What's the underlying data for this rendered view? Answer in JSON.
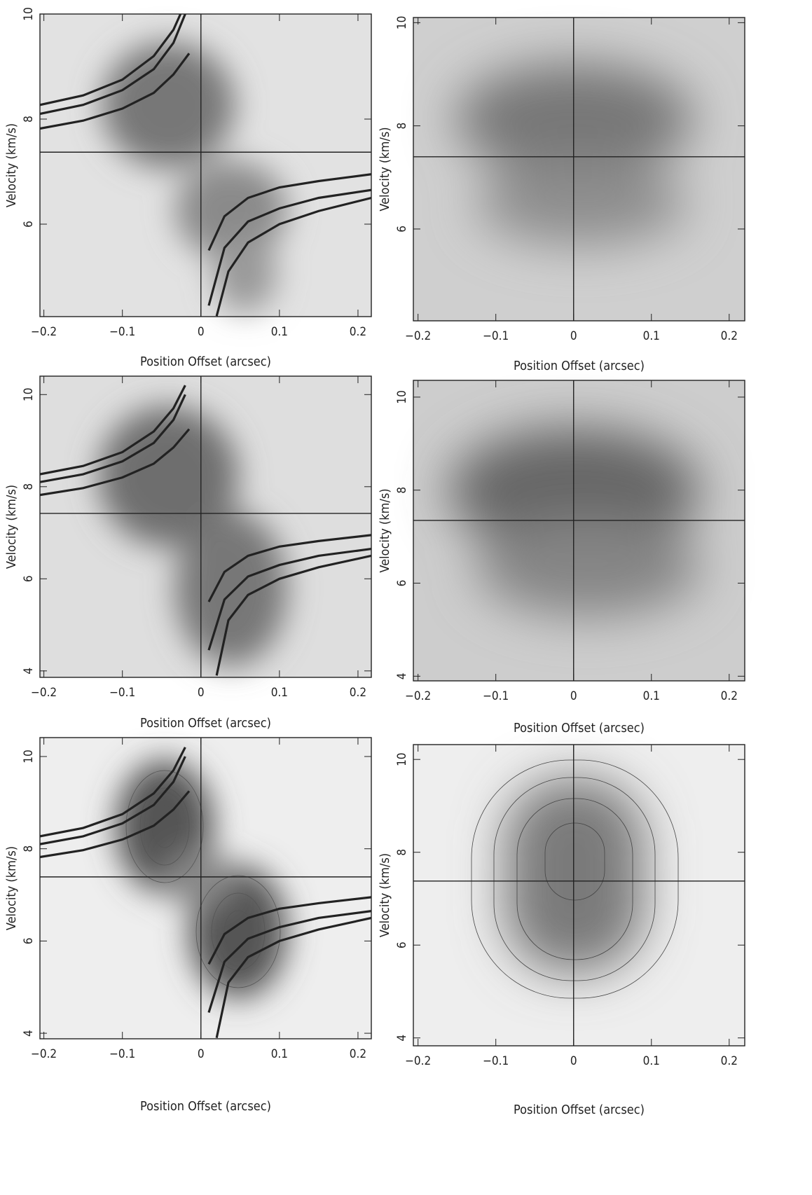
{
  "chart_data": [
    {
      "type": "line",
      "xlabel": "Position Offset (arcsec)",
      "ylabel": "Velocity (km/s)",
      "xlim": [
        -0.205,
        0.217
      ],
      "ylim": [
        4.24,
        10
      ],
      "xticks": [
        {
          "value": -0.2,
          "label": "−0.2"
        },
        {
          "value": -0.1,
          "label": "−0.1"
        },
        0,
        0.1,
        0.2
      ],
      "yticks": [
        6,
        8,
        10
      ],
      "hlines": [
        7.37
      ],
      "vlines": [
        0
      ],
      "series": [
        {
          "color": "#222222",
          "x": [
            -0.205,
            -0.15,
            -0.1,
            -0.06,
            -0.035,
            -0.02
          ],
          "values": [
            8.27,
            8.45,
            8.75,
            9.2,
            9.7,
            10.2
          ]
        },
        {
          "color": "#222222",
          "x": [
            -0.205,
            -0.15,
            -0.1,
            -0.06,
            -0.035,
            -0.02
          ],
          "values": [
            8.1,
            8.27,
            8.55,
            8.95,
            9.45,
            10.0
          ]
        },
        {
          "color": "#222222",
          "x": [
            -0.205,
            -0.15,
            -0.1,
            -0.06,
            -0.035,
            -0.015
          ],
          "values": [
            7.82,
            7.97,
            8.2,
            8.5,
            8.85,
            9.25
          ]
        },
        {
          "color": "#222222",
          "x": [
            0.01,
            0.03,
            0.06,
            0.1,
            0.15,
            0.217
          ],
          "values": [
            5.5,
            6.15,
            6.5,
            6.7,
            6.82,
            6.95
          ]
        },
        {
          "color": "#222222",
          "x": [
            0.01,
            0.03,
            0.06,
            0.1,
            0.15,
            0.217
          ],
          "values": [
            4.45,
            5.55,
            6.05,
            6.3,
            6.5,
            6.65
          ]
        },
        {
          "color": "#222222",
          "x": [
            0.02,
            0.035,
            0.06,
            0.1,
            0.15,
            0.217
          ],
          "values": [
            4.25,
            5.1,
            5.65,
            6.0,
            6.25,
            6.5
          ]
        }
      ]
    },
    {
      "type": "line",
      "xlabel": "Position Offset (arcsec)",
      "ylabel": "Velocity (km/s)",
      "xlim": [
        -0.206,
        0.22
      ],
      "ylim": [
        4.22,
        10.1
      ],
      "xticks": [
        {
          "value": -0.2,
          "label": "−0.2"
        },
        {
          "value": -0.1,
          "label": "−0.1"
        },
        0,
        0.1,
        0.2
      ],
      "yticks": [
        6,
        8,
        10
      ],
      "hlines": [
        7.4
      ],
      "vlines": [
        0
      ],
      "series": []
    },
    {
      "type": "line",
      "xlabel": "Position Offset (arcsec)",
      "ylabel": "Velocity (km/s)",
      "xlim": [
        -0.205,
        0.217
      ],
      "ylim": [
        3.86,
        10.4
      ],
      "xticks": [
        {
          "value": -0.2,
          "label": "−0.2"
        },
        {
          "value": -0.1,
          "label": "−0.1"
        },
        0,
        0.1,
        0.2
      ],
      "yticks": [
        4,
        6,
        8,
        10
      ],
      "hlines": [
        7.42
      ],
      "vlines": [
        0
      ],
      "series": [
        {
          "color": "#222222",
          "x": [
            -0.205,
            -0.15,
            -0.1,
            -0.06,
            -0.035,
            -0.02
          ],
          "values": [
            8.27,
            8.45,
            8.75,
            9.2,
            9.7,
            10.2
          ]
        },
        {
          "color": "#222222",
          "x": [
            -0.205,
            -0.15,
            -0.1,
            -0.06,
            -0.035,
            -0.02
          ],
          "values": [
            8.1,
            8.27,
            8.55,
            8.95,
            9.45,
            10.0
          ]
        },
        {
          "color": "#222222",
          "x": [
            -0.205,
            -0.15,
            -0.1,
            -0.06,
            -0.035,
            -0.015
          ],
          "values": [
            7.82,
            7.97,
            8.2,
            8.5,
            8.85,
            9.25
          ]
        },
        {
          "color": "#222222",
          "x": [
            0.01,
            0.03,
            0.06,
            0.1,
            0.15,
            0.217
          ],
          "values": [
            5.5,
            6.15,
            6.5,
            6.7,
            6.82,
            6.95
          ]
        },
        {
          "color": "#222222",
          "x": [
            0.01,
            0.03,
            0.06,
            0.1,
            0.15,
            0.217
          ],
          "values": [
            4.45,
            5.55,
            6.05,
            6.3,
            6.5,
            6.65
          ]
        },
        {
          "color": "#222222",
          "x": [
            0.02,
            0.035,
            0.06,
            0.1,
            0.15,
            0.217
          ],
          "values": [
            3.9,
            5.1,
            5.65,
            6.0,
            6.25,
            6.5
          ]
        }
      ]
    },
    {
      "type": "line",
      "xlabel": "Position Offset (arcsec)",
      "ylabel": "Velocity (km/s)",
      "xlim": [
        -0.206,
        0.22
      ],
      "ylim": [
        3.9,
        10.36
      ],
      "xticks": [
        {
          "value": -0.2,
          "label": "−0.2"
        },
        {
          "value": -0.1,
          "label": "−0.1"
        },
        0,
        0.1,
        0.2
      ],
      "yticks": [
        4,
        6,
        8,
        10
      ],
      "hlines": [
        7.35
      ],
      "vlines": [
        0
      ],
      "series": []
    },
    {
      "type": "line",
      "xlabel": "Position Offset (arcsec)",
      "ylabel": "Velocity (km/s)",
      "xlim": [
        -0.205,
        0.217
      ],
      "ylim": [
        3.88,
        10.41
      ],
      "xticks": [
        {
          "value": -0.2,
          "label": "−0.2"
        },
        {
          "value": -0.1,
          "label": "−0.1"
        },
        0,
        0.1,
        0.2
      ],
      "yticks": [
        4,
        6,
        8,
        10
      ],
      "hlines": [
        7.39
      ],
      "vlines": [
        0
      ],
      "series": [
        {
          "color": "#222222",
          "x": [
            -0.205,
            -0.15,
            -0.1,
            -0.06,
            -0.035,
            -0.02
          ],
          "values": [
            8.27,
            8.45,
            8.75,
            9.2,
            9.7,
            10.2
          ]
        },
        {
          "color": "#222222",
          "x": [
            -0.205,
            -0.15,
            -0.1,
            -0.06,
            -0.035,
            -0.02
          ],
          "values": [
            8.1,
            8.27,
            8.55,
            8.95,
            9.45,
            10.0
          ]
        },
        {
          "color": "#222222",
          "x": [
            -0.205,
            -0.15,
            -0.1,
            -0.06,
            -0.035,
            -0.015
          ],
          "values": [
            7.82,
            7.97,
            8.2,
            8.5,
            8.85,
            9.25
          ]
        },
        {
          "color": "#222222",
          "x": [
            0.01,
            0.03,
            0.06,
            0.1,
            0.15,
            0.217
          ],
          "values": [
            5.5,
            6.15,
            6.5,
            6.7,
            6.82,
            6.95
          ]
        },
        {
          "color": "#222222",
          "x": [
            0.01,
            0.03,
            0.06,
            0.1,
            0.15,
            0.217
          ],
          "values": [
            4.45,
            5.55,
            6.05,
            6.3,
            6.5,
            6.65
          ]
        },
        {
          "color": "#222222",
          "x": [
            0.02,
            0.035,
            0.06,
            0.1,
            0.15,
            0.217
          ],
          "values": [
            3.9,
            5.1,
            5.65,
            6.0,
            6.25,
            6.5
          ]
        }
      ]
    },
    {
      "type": "line",
      "xlabel": "Position Offset (arcsec)",
      "ylabel": "Velocity (km/s)",
      "xlim": [
        -0.206,
        0.22
      ],
      "ylim": [
        3.83,
        10.32
      ],
      "xticks": [
        {
          "value": -0.2,
          "label": "−0.2"
        },
        {
          "value": -0.1,
          "label": "−0.1"
        },
        0,
        0.1,
        0.2
      ],
      "yticks": [
        4,
        6,
        8,
        10
      ],
      "hlines": [
        7.38
      ],
      "vlines": [
        0
      ],
      "series": []
    }
  ]
}
